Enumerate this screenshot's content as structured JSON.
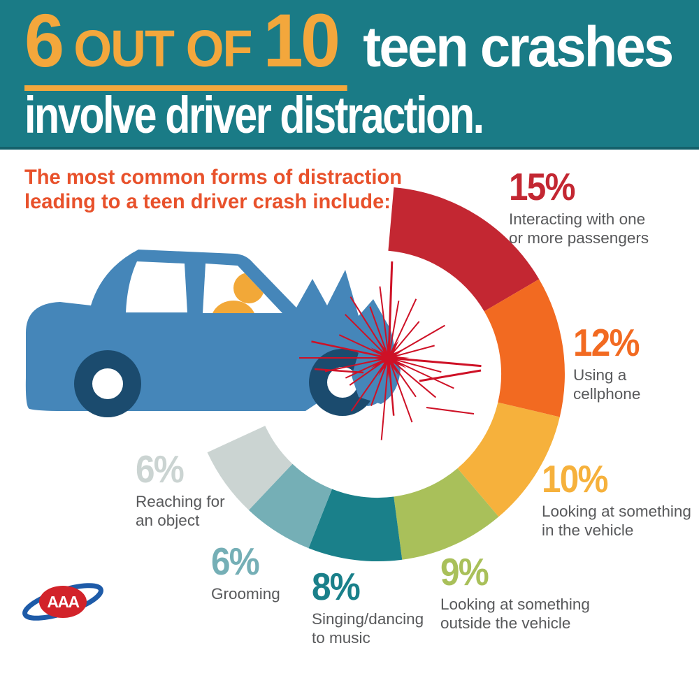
{
  "header": {
    "num1": "6",
    "out_of": "OUT OF",
    "num2": "10",
    "line1_rest": "teen crashes",
    "line2": "involve driver distraction."
  },
  "subtitle": {
    "line1": "The most common forms of distraction",
    "line2": "leading to a teen driver crash include:"
  },
  "logo": {
    "text": "AAA"
  },
  "palette": {
    "header_bg": "#1a7b86",
    "headline_gold": "#f3a73c",
    "headline_white": "#ffffff",
    "subtitle_orange": "#e8512b",
    "label_gray": "#58595b",
    "car_blue": "#4586b9",
    "car_navy": "#1b4b6e",
    "driver_orange": "#f2a838",
    "crash_red": "#ce1126",
    "logo_red": "#d2232a",
    "logo_blue": "#1e5ba8"
  },
  "chart_data": {
    "type": "donut-arc",
    "title": "6 out of 10 teen crashes involve driver distraction.",
    "subtitle": "The most common forms of distraction leading to a teen driver crash include:",
    "unit": "percent of teen driver crashes",
    "segments": [
      {
        "value": 15,
        "pct_label": "15%",
        "color": "#c32732",
        "label": "Interacting with one or more passengers",
        "label_lines": [
          "Interacting with one",
          "or more passengers"
        ]
      },
      {
        "value": 12,
        "pct_label": "12%",
        "color": "#f26a21",
        "label": "Using a cellphone",
        "label_lines": [
          "Using a",
          "cellphone"
        ]
      },
      {
        "value": 10,
        "pct_label": "10%",
        "color": "#f6b13c",
        "label": "Looking at something in the vehicle",
        "label_lines": [
          "Looking at something",
          "in the vehicle"
        ]
      },
      {
        "value": 9,
        "pct_label": "9%",
        "color": "#a9c05a",
        "label": "Looking at something outside the vehicle",
        "label_lines": [
          "Looking at something",
          "outside the vehicle"
        ]
      },
      {
        "value": 8,
        "pct_label": "8%",
        "color": "#1a808a",
        "label": "Singing/dancing to music",
        "label_lines": [
          "Singing/dancing",
          "to music"
        ]
      },
      {
        "value": 6,
        "pct_label": "6%",
        "color": "#75afb6",
        "label": "Grooming",
        "label_lines": [
          "Grooming"
        ]
      },
      {
        "value": 6,
        "pct_label": "6%",
        "color": "#cbd4d2",
        "label": "Reaching for an object",
        "label_lines": [
          "Reaching for",
          "an object"
        ]
      }
    ],
    "layout": {
      "total_percent_shown": 66,
      "start_deg": 85,
      "deg_per_percent": 3.64,
      "direction": "clockwise",
      "gap_opens": "upper-left toward crashing car"
    }
  }
}
